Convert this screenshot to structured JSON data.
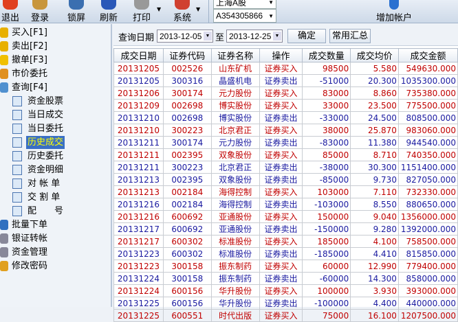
{
  "toolbar": {
    "items": [
      {
        "label": "退出",
        "icon": "exit-icon",
        "color": "#e04020"
      },
      {
        "label": "登录",
        "icon": "login-user-icon",
        "color": "#c8963c"
      },
      {
        "label": "锁屏",
        "icon": "lock-screen-icon",
        "color": "#3b6fb0"
      },
      {
        "label": "刷新",
        "icon": "refresh-icon",
        "color": "#2a58b8"
      },
      {
        "label": "打印",
        "icon": "printer-icon",
        "color": "#999999"
      },
      {
        "label": "系统",
        "icon": "system-tools-icon",
        "color": "#d04030"
      }
    ],
    "market_select": "上海A股",
    "account_select": "A354305866",
    "add_account": "增加帐户"
  },
  "sidebar": {
    "items": [
      {
        "label": "买入[F1]",
        "icon": "buy-icon",
        "color": "#e8b000"
      },
      {
        "label": "卖出[F2]",
        "icon": "sell-icon",
        "color": "#e8b000"
      },
      {
        "label": "撤单[F3]",
        "icon": "cancel-hand-icon",
        "color": "#f0c000"
      },
      {
        "label": "市价委托",
        "icon": "market-order-icon",
        "color": "#e09020"
      },
      {
        "label": "查询[F4]",
        "icon": "query-magnifier-icon",
        "color": "#5090d0"
      }
    ],
    "sub_items": [
      "资金股票",
      "当日成交",
      "当日委托",
      "历史成交",
      "历史委托",
      "资金明细",
      "对 帐 单",
      "交 割 单",
      "配　　号"
    ],
    "active_sub": "历史成交",
    "bottom_items": [
      {
        "label": "批量下单",
        "icon": "batch-order-icon",
        "color": "#3070c0"
      },
      {
        "label": "银证转帐",
        "icon": "bank-transfer-icon",
        "color": "#889"
      },
      {
        "label": "资金管理",
        "icon": "fund-management-icon",
        "color": "#889"
      },
      {
        "label": "修改密码",
        "icon": "key-icon",
        "color": "#e0a020"
      }
    ]
  },
  "query": {
    "label": "查询日期",
    "start": "2013-12-05",
    "to": "至",
    "end": "2013-12-25",
    "confirm": "确定",
    "summary": "常用汇总"
  },
  "table": {
    "headers": [
      "成交日期",
      "证券代码",
      "证券名称",
      "操作",
      "成交数量",
      "成交均价",
      "成交金额"
    ],
    "rows": [
      [
        "20131205",
        "002526",
        "山东矿机",
        "证券买入",
        "98500",
        "5.580",
        "549630.000"
      ],
      [
        "20131205",
        "300316",
        "晶盛机电",
        "证券卖出",
        "-51000",
        "20.300",
        "1035300.000"
      ],
      [
        "20131206",
        "300174",
        "元力股份",
        "证券买入",
        "83000",
        "8.860",
        "735380.000"
      ],
      [
        "20131209",
        "002698",
        "博实股份",
        "证券买入",
        "33000",
        "23.500",
        "775500.000"
      ],
      [
        "20131210",
        "002698",
        "博实股份",
        "证券卖出",
        "-33000",
        "24.500",
        "808500.000"
      ],
      [
        "20131210",
        "300223",
        "北京君正",
        "证券买入",
        "38000",
        "25.870",
        "983060.000"
      ],
      [
        "20131211",
        "300174",
        "元力股份",
        "证券卖出",
        "-83000",
        "11.380",
        "944540.000"
      ],
      [
        "20131211",
        "002395",
        "双象股份",
        "证券买入",
        "85000",
        "8.710",
        "740350.000"
      ],
      [
        "20131211",
        "300223",
        "北京君正",
        "证券卖出",
        "-38000",
        "30.300",
        "1151400.000"
      ],
      [
        "20131213",
        "002395",
        "双象股份",
        "证券卖出",
        "-85000",
        "9.730",
        "827050.000"
      ],
      [
        "20131213",
        "002184",
        "海得控制",
        "证券买入",
        "103000",
        "7.110",
        "732330.000"
      ],
      [
        "20131216",
        "002184",
        "海得控制",
        "证券卖出",
        "-103000",
        "8.550",
        "880650.000"
      ],
      [
        "20131216",
        "600692",
        "亚通股份",
        "证券买入",
        "150000",
        "9.040",
        "1356000.000"
      ],
      [
        "20131217",
        "600692",
        "亚通股份",
        "证券卖出",
        "-150000",
        "9.280",
        "1392000.000"
      ],
      [
        "20131217",
        "600302",
        "标准股份",
        "证券买入",
        "185000",
        "4.100",
        "758500.000"
      ],
      [
        "20131223",
        "600302",
        "标准股份",
        "证券卖出",
        "-185000",
        "4.410",
        "815850.000"
      ],
      [
        "20131223",
        "300158",
        "振东制药",
        "证券买入",
        "60000",
        "12.990",
        "779400.000"
      ],
      [
        "20131224",
        "300158",
        "振东制药",
        "证券卖出",
        "-60000",
        "14.300",
        "858000.000"
      ],
      [
        "20131224",
        "600156",
        "华升股份",
        "证券买入",
        "100000",
        "3.930",
        "393000.000"
      ],
      [
        "20131225",
        "600156",
        "华升股份",
        "证券卖出",
        "-100000",
        "4.400",
        "440000.000"
      ],
      [
        "20131225",
        "600551",
        "时代出版",
        "证券买入",
        "75000",
        "16.100",
        "1207500.000"
      ]
    ]
  },
  "colors": {
    "buy": "#c00000",
    "sell": "#1a1aa0",
    "highlight": "#3a6fc4"
  }
}
